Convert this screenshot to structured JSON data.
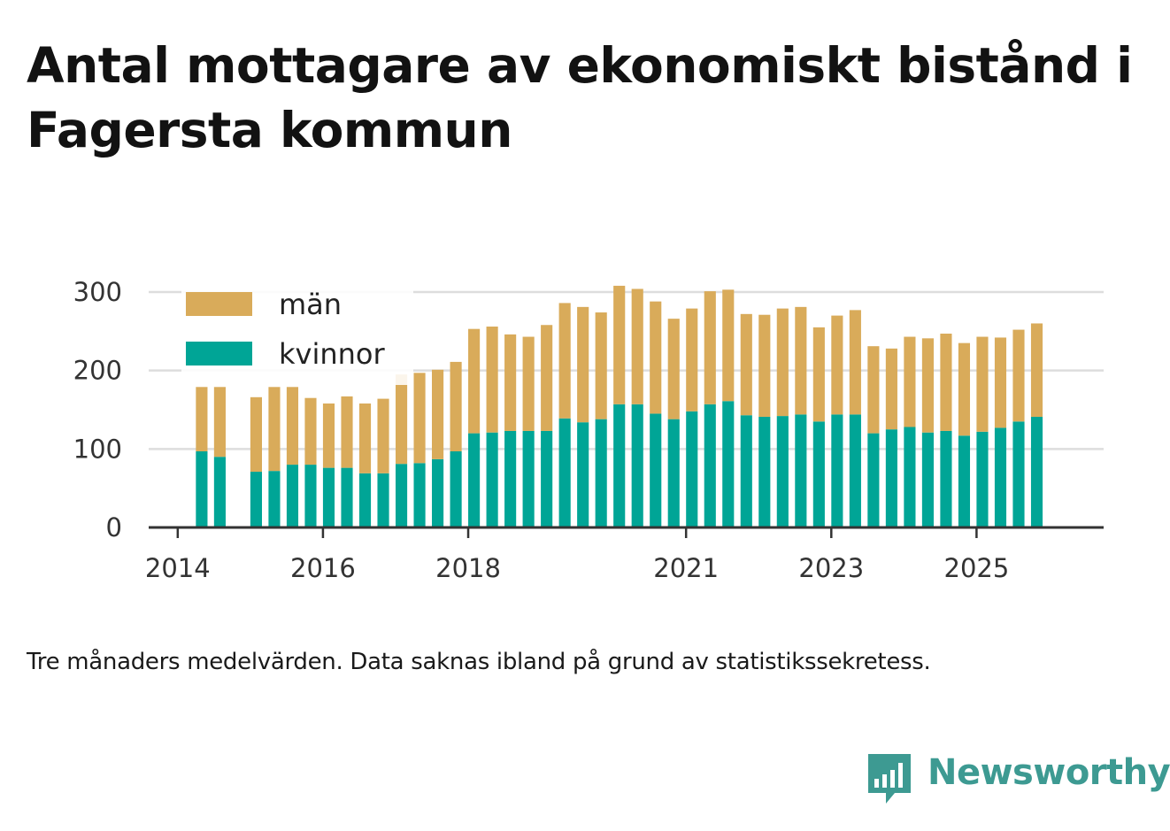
{
  "title": "Antal mottagare av ekonomiskt bistånd i Fagersta kommun",
  "footnote": "Tre månaders medelvärden. Data saknas ibland på grund av statistikssekretess.",
  "brand": {
    "name": "Newsworthy",
    "icon": "bar-chart-speech-bubble-icon",
    "color": "#3d9a92"
  },
  "colors": {
    "men": "#d9ab5a",
    "women": "#00a596",
    "grid": "#dddddd",
    "axis": "#333333"
  },
  "chart_data": {
    "type": "bar",
    "stacked": true,
    "title": "Antal mottagare av ekonomiskt bistånd i Fagersta kommun",
    "xlabel": "",
    "ylabel": "",
    "ylim": [
      0,
      300
    ],
    "y_ticks": [
      0,
      100,
      200,
      300
    ],
    "x_ticks": [
      "2014",
      "2016",
      "2018",
      "2021",
      "2023",
      "2025"
    ],
    "x_tick_positions": [
      2014.0,
      2016.0,
      2018.0,
      2021.0,
      2023.0,
      2025.0
    ],
    "grid": true,
    "legend_position": "top-left",
    "bar_width_years": 0.16,
    "x": [
      2014.33,
      2014.58,
      2015.08,
      2015.33,
      2015.58,
      2015.83,
      2016.08,
      2016.33,
      2016.58,
      2016.83,
      2017.08,
      2017.33,
      2017.58,
      2017.83,
      2018.08,
      2018.33,
      2018.58,
      2018.83,
      2019.08,
      2019.33,
      2019.58,
      2019.83,
      2020.08,
      2020.33,
      2020.58,
      2020.83,
      2021.08,
      2021.33,
      2021.58,
      2021.83,
      2022.08,
      2022.33,
      2022.58,
      2022.83,
      2023.08,
      2023.33,
      2023.58,
      2023.83,
      2024.08,
      2024.33,
      2024.58,
      2024.83,
      2025.08,
      2025.33,
      2025.58,
      2025.83
    ],
    "series": [
      {
        "name": "kvinnor",
        "color": "#00a596",
        "values": [
          97,
          90,
          71,
          72,
          80,
          80,
          76,
          76,
          69,
          69,
          81,
          82,
          87,
          97,
          120,
          121,
          123,
          123,
          123,
          139,
          134,
          138,
          157,
          157,
          145,
          138,
          148,
          157,
          161,
          143,
          141,
          142,
          144,
          135,
          144,
          144,
          120,
          125,
          128,
          121,
          123,
          117,
          122,
          127,
          135,
          141
        ]
      },
      {
        "name": "män",
        "color": "#d9ab5a",
        "values": [
          82,
          89,
          95,
          107,
          99,
          85,
          82,
          91,
          89,
          95,
          114,
          115,
          114,
          114,
          133,
          135,
          123,
          120,
          135,
          147,
          147,
          136,
          151,
          147,
          143,
          128,
          131,
          144,
          142,
          129,
          130,
          137,
          137,
          120,
          126,
          133,
          111,
          103,
          115,
          120,
          124,
          118,
          121,
          115,
          117,
          119
        ]
      }
    ]
  }
}
